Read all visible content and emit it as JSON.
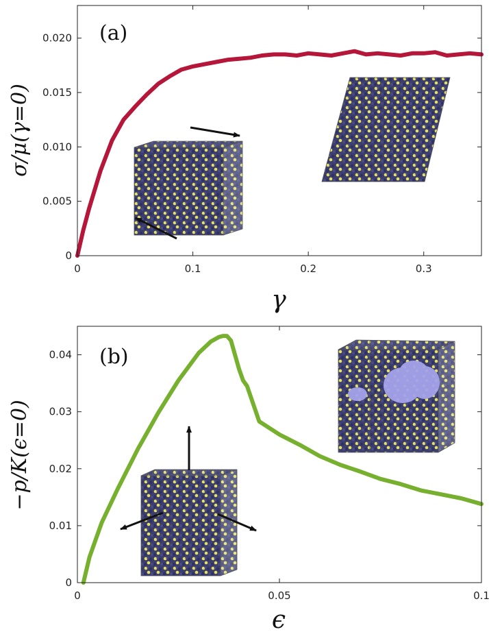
{
  "chart_data": [
    {
      "type": "line",
      "panel_label": "(a)",
      "xlabel": "γ",
      "ylabel": "σ/μ(γ=0)",
      "xlim": [
        0,
        0.35
      ],
      "ylim": [
        0,
        0.023
      ],
      "xticks": [
        "0",
        "0.1",
        "0.2",
        "0.3"
      ],
      "xtick_values": [
        0,
        0.1,
        0.2,
        0.3
      ],
      "yticks": [
        "0",
        "0.005",
        "0.010",
        "0.015",
        "0.020"
      ],
      "ytick_values": [
        0,
        0.005,
        0.01,
        0.015,
        0.02
      ],
      "grid": false,
      "color": "#b5173a",
      "series": [
        {
          "x": [
            0,
            0.005,
            0.01,
            0.02,
            0.03,
            0.04,
            0.05,
            0.06,
            0.07,
            0.08,
            0.09,
            0.1,
            0.11,
            0.12,
            0.13,
            0.14,
            0.15,
            0.16,
            0.17,
            0.18,
            0.19,
            0.2,
            0.21,
            0.22,
            0.23,
            0.24,
            0.25,
            0.26,
            0.27,
            0.28,
            0.29,
            0.3,
            0.31,
            0.32,
            0.33,
            0.34,
            0.35
          ],
          "values": [
            0,
            0.0023,
            0.0043,
            0.0078,
            0.0106,
            0.0125,
            0.0137,
            0.0148,
            0.0158,
            0.0165,
            0.0171,
            0.0174,
            0.0176,
            0.0178,
            0.018,
            0.0181,
            0.0182,
            0.0184,
            0.0185,
            0.0185,
            0.0184,
            0.0186,
            0.0185,
            0.0184,
            0.0186,
            0.0188,
            0.0185,
            0.0186,
            0.0185,
            0.0184,
            0.0186,
            0.0186,
            0.0187,
            0.0184,
            0.0185,
            0.0186,
            0.0185
          ]
        }
      ]
    },
    {
      "type": "line",
      "panel_label": "(b)",
      "xlabel": "ϵ",
      "ylabel": "−p/K(ϵ=0)",
      "xlim": [
        0,
        0.1
      ],
      "ylim": [
        0,
        0.045
      ],
      "xticks": [
        "0",
        "0.05",
        "0.1"
      ],
      "xtick_values": [
        0,
        0.05,
        0.1
      ],
      "yticks": [
        "0",
        "0.01",
        "0.02",
        "0.03",
        "0.04"
      ],
      "ytick_values": [
        0,
        0.01,
        0.02,
        0.03,
        0.04
      ],
      "grid": false,
      "color": "#76b02e",
      "series": [
        {
          "x": [
            0.0015,
            0.003,
            0.006,
            0.01,
            0.015,
            0.02,
            0.025,
            0.03,
            0.033,
            0.035,
            0.036,
            0.037,
            0.038,
            0.039,
            0.04,
            0.041,
            0.042,
            0.045,
            0.05,
            0.055,
            0.06,
            0.065,
            0.07,
            0.075,
            0.08,
            0.085,
            0.09,
            0.095,
            0.1
          ],
          "values": [
            0,
            0.0045,
            0.0105,
            0.0165,
            0.0235,
            0.0298,
            0.0355,
            0.0403,
            0.0423,
            0.0431,
            0.0433,
            0.0433,
            0.0425,
            0.04,
            0.0375,
            0.0355,
            0.0345,
            0.0283,
            0.026,
            0.0242,
            0.0222,
            0.0207,
            0.0195,
            0.0182,
            0.0173,
            0.0162,
            0.0155,
            0.0148,
            0.0138
          ]
        }
      ]
    }
  ]
}
